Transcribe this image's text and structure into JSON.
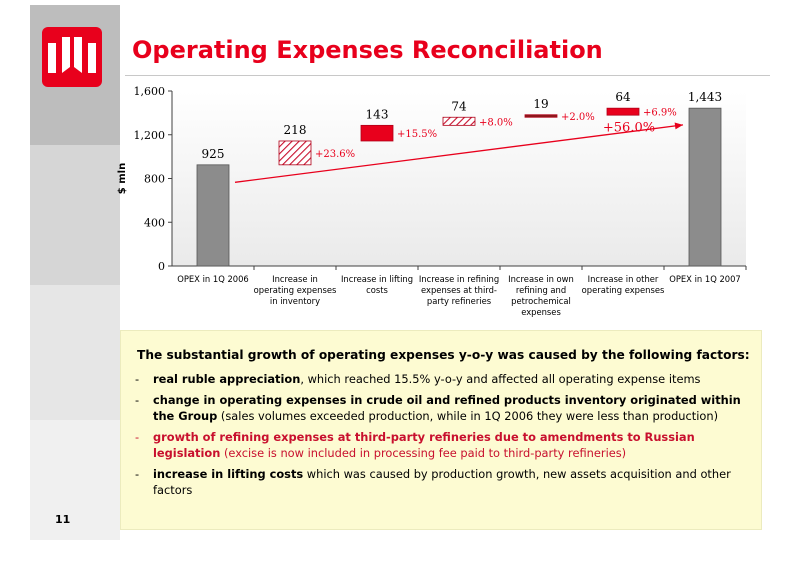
{
  "slide": {
    "title": "Operating Expenses Reconciliation",
    "page_number": "11"
  },
  "colors": {
    "accent_red": "#e8001c",
    "bar_gray": "#8c8c8c",
    "text_box_bg": "#fdfbd2"
  },
  "chart_data": {
    "type": "bar",
    "ylabel": "$ mln",
    "ylim": [
      0,
      1600
    ],
    "yticks": [
      "0",
      "400",
      "800",
      "1,200",
      "1,600"
    ],
    "categories": [
      [
        "OPEX in 1Q 2006"
      ],
      [
        "Increase in",
        "operating expenses",
        "in inventory"
      ],
      [
        "Increase in lifting",
        "costs"
      ],
      [
        "Increase in refining",
        "expenses at third-",
        "party refineries"
      ],
      [
        "Increase in own",
        "refining and",
        "petrochemical",
        "expenses"
      ],
      [
        "Increase in other",
        "operating expenses"
      ],
      [
        "OPEX in 1Q 2007"
      ]
    ],
    "bars": [
      {
        "kind": "total",
        "base": 0,
        "value": 925,
        "label": "925"
      },
      {
        "kind": "step",
        "base": 925,
        "value": 218,
        "label": "218",
        "pct": "+23.6%",
        "fill": "hatched"
      },
      {
        "kind": "step",
        "base": 1143,
        "value": 143,
        "label": "143",
        "pct": "+15.5%",
        "fill": "solid"
      },
      {
        "kind": "step",
        "base": 1286,
        "value": 74,
        "label": "74",
        "pct": "+8.0%",
        "fill": "hatched"
      },
      {
        "kind": "step",
        "base": 1360,
        "value": 19,
        "label": "19",
        "pct": "+2.0%",
        "fill": "dark"
      },
      {
        "kind": "step",
        "base": 1379,
        "value": 64,
        "label": "64",
        "pct": "+6.9%",
        "fill": "solid"
      },
      {
        "kind": "total",
        "base": 0,
        "value": 1443,
        "label": "1,443"
      }
    ],
    "overall_change": "+56.0%"
  },
  "factors": {
    "lead": "The substantial growth of operating expenses y-o-y was caused by the following factors:",
    "items": [
      {
        "dash": "-",
        "bold": " real ruble appreciation",
        "rest": ", which reached 15.5% y-o-y and affected all operating expense items"
      },
      {
        "dash": "-",
        "bold": "change in operating expenses in crude oil and refined products inventory originated within the Group",
        "rest": " (sales volumes exceeded production, while in 1Q 2006 they were less than production)"
      },
      {
        "dash": "-",
        "bold": "growth of refining expenses at third-party refineries due to amendments to Russian legislation",
        "rest": " (excise is now included in processing fee paid to third-party refineries)"
      },
      {
        "dash": "-",
        "bold": "increase in lifting costs",
        "rest": " which was caused by production growth, new assets acquisition and other factors"
      }
    ]
  }
}
